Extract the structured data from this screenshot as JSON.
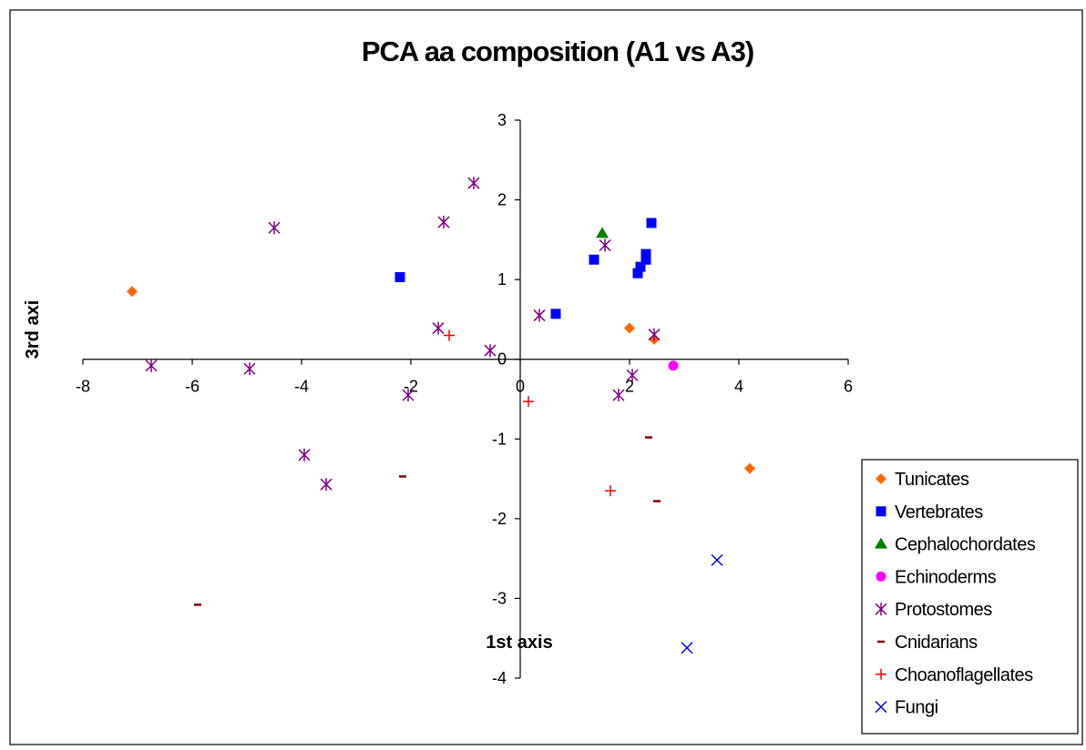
{
  "chart_data": {
    "type": "scatter",
    "title": "PCA aa composition (A1 vs A3)",
    "xlabel": "1st axis",
    "ylabel": "3rd axi",
    "xlim": [
      -8,
      6
    ],
    "ylim": [
      -4,
      3
    ],
    "x_ticks": [
      "-8",
      "-6",
      "-4",
      "-2",
      "0",
      "2",
      "4",
      "6"
    ],
    "y_ticks": [
      "3",
      "2",
      "1",
      "0",
      "-1",
      "-2",
      "-3",
      "-4"
    ],
    "grid": false,
    "legend_position": "right",
    "series": [
      {
        "name": "Tunicates",
        "color": "#FF6600",
        "marker": "diamond",
        "points": [
          [
            -7.1,
            0.85
          ],
          [
            2.0,
            0.39
          ],
          [
            2.45,
            0.25
          ],
          [
            4.2,
            -1.37
          ]
        ]
      },
      {
        "name": "Vertebrates",
        "color": "#0000FF",
        "marker": "square",
        "points": [
          [
            -2.2,
            1.03
          ],
          [
            0.65,
            0.57
          ],
          [
            1.35,
            1.25
          ],
          [
            2.15,
            1.08
          ],
          [
            2.2,
            1.16
          ],
          [
            2.3,
            1.25
          ],
          [
            2.3,
            1.32
          ],
          [
            2.4,
            1.71
          ]
        ]
      },
      {
        "name": "Cephalochordates",
        "color": "#008000",
        "marker": "triangle",
        "points": [
          [
            1.5,
            1.58
          ]
        ]
      },
      {
        "name": "Echinoderms",
        "color": "#FF00FF",
        "marker": "circle",
        "points": [
          [
            2.8,
            -0.08
          ]
        ]
      },
      {
        "name": "Protostomes",
        "color": "#800080",
        "marker": "star",
        "points": [
          [
            -6.75,
            -0.08
          ],
          [
            -4.95,
            -0.12
          ],
          [
            -4.5,
            1.65
          ],
          [
            -3.95,
            -1.2
          ],
          [
            -3.55,
            -1.57
          ],
          [
            -2.05,
            -0.45
          ],
          [
            -1.5,
            0.39
          ],
          [
            -1.4,
            1.72
          ],
          [
            -0.85,
            2.21
          ],
          [
            -0.55,
            0.11
          ],
          [
            0.35,
            0.55
          ],
          [
            1.55,
            1.43
          ],
          [
            1.8,
            -0.45
          ],
          [
            2.05,
            -0.2
          ],
          [
            2.45,
            0.31
          ]
        ]
      },
      {
        "name": "Cnidarians",
        "color": "#800000",
        "marker": "dash",
        "points": [
          [
            -5.9,
            -3.08
          ],
          [
            -2.15,
            -1.47
          ],
          [
            2.35,
            -0.98
          ],
          [
            2.5,
            -1.78
          ]
        ]
      },
      {
        "name": "Choanoflagellates",
        "color": "#FF0000",
        "marker": "plus",
        "points": [
          [
            -1.3,
            0.3
          ],
          [
            0.15,
            -0.53
          ],
          [
            1.65,
            -1.65
          ]
        ]
      },
      {
        "name": "Fungi",
        "color": "#0000FF",
        "marker": "x",
        "points": [
          [
            3.05,
            -3.62
          ],
          [
            3.6,
            -2.52
          ]
        ]
      }
    ]
  }
}
